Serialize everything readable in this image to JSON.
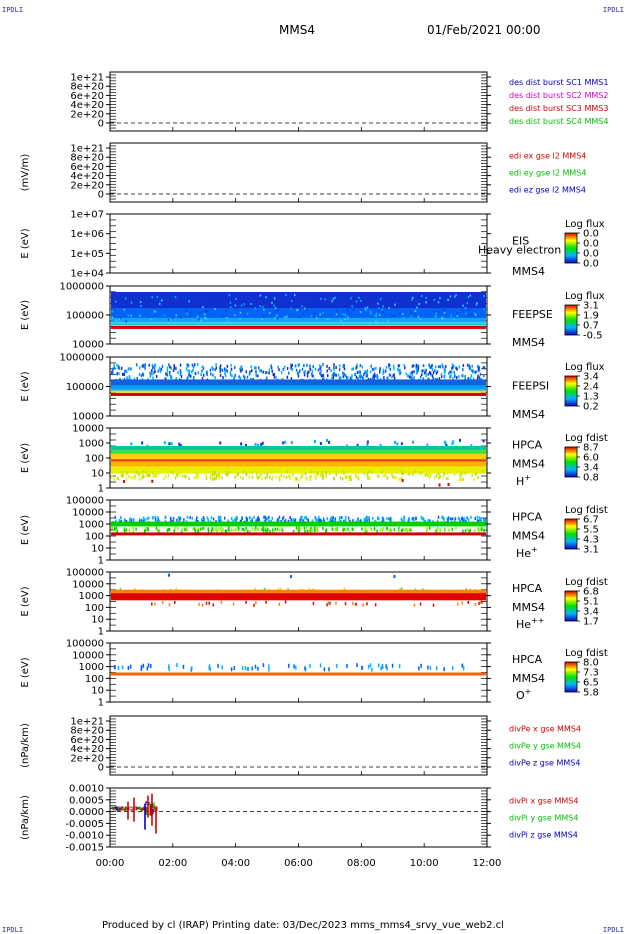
{
  "header": {
    "corner_left": "IPDLI",
    "corner_right": "IPDLI",
    "spacecraft": "MMS4",
    "date": "01/Feb/2021 00:00"
  },
  "footer": {
    "text": "Produced by cl (IRAP)   Printing date: 03/Dec/2023   mms_mms4_srvy_vue_web2.cl",
    "corner_left": "IPDLI",
    "corner_right": "IPDLI"
  },
  "x_axis": {
    "ticks": [
      "00:00",
      "02:00",
      "04:00",
      "06:00",
      "08:00",
      "10:00",
      "12:00"
    ]
  },
  "colors": {
    "red": "#d40000",
    "green": "#00c000",
    "blue": "#0000c8",
    "magenta": "#d000d0"
  },
  "chart_data": [
    {
      "type": "line",
      "id": "p1",
      "ylabel": "",
      "ytick_labels": [
        "1e+21",
        "8e+20",
        "6e+20",
        "4e+20",
        "2e+20",
        "0"
      ],
      "legend": [
        {
          "label": "des dist burst SC1 MMS1",
          "color": "#0000c8"
        },
        {
          "label": "des dist burst SC2 MMS2",
          "color": "#d000d0"
        },
        {
          "label": "des dist burst SC3 MMS3",
          "color": "#d40000"
        },
        {
          "label": "des dist burst SC4 MMS4",
          "color": "#00c000"
        }
      ]
    },
    {
      "type": "line",
      "id": "p2",
      "ylabel": "(mV/m)",
      "ytick_labels": [
        "1e+21",
        "8e+20",
        "6e+20",
        "4e+20",
        "2e+20",
        "0"
      ],
      "legend": [
        {
          "label": "edi ex gse l2 MMS4",
          "color": "#d40000"
        },
        {
          "label": "edi ey gse l2 MMS4",
          "color": "#00c000"
        },
        {
          "label": "edi ez gse l2 MMS4",
          "color": "#0000c8"
        }
      ]
    },
    {
      "type": "heatmap",
      "id": "p3",
      "ylabel": "E (eV)",
      "ytick_labels": [
        "1e+07",
        "1e+06",
        "1e+05",
        "1e+04"
      ],
      "instrument": "EIS",
      "instrument2": "MMS4",
      "note": "Heavy electron to",
      "colorbar": {
        "title": "Log flux",
        "ticks": [
          "0.0",
          "0.0",
          "0.0",
          "0.0"
        ]
      }
    },
    {
      "type": "heatmap",
      "id": "p4",
      "ylabel": "E (eV)",
      "ytick_labels": [
        "1000000",
        "100000",
        "10000"
      ],
      "instrument": "FEEPSE",
      "instrument2": "MMS4",
      "colorbar": {
        "title": "Log flux",
        "ticks": [
          "3.1",
          "1.9",
          "0.7",
          "-0.5"
        ]
      }
    },
    {
      "type": "heatmap",
      "id": "p5",
      "ylabel": "E (eV)",
      "ytick_labels": [
        "1000000",
        "100000",
        "10000"
      ],
      "instrument": "FEEPSI",
      "instrument2": "MMS4",
      "colorbar": {
        "title": "Log flux",
        "ticks": [
          "3.4",
          "2.4",
          "1.3",
          "0.2"
        ]
      }
    },
    {
      "type": "heatmap",
      "id": "p6",
      "ylabel": "E (eV)",
      "ytick_labels": [
        "10000",
        "1000",
        "100",
        "10",
        "1"
      ],
      "instrument": "HPCA",
      "instrument2": "MMS4",
      "species": "H",
      "charge": "+",
      "colorbar": {
        "title": "Log fdist",
        "ticks": [
          "8.7",
          "6.0",
          "3.4",
          "0.8"
        ]
      }
    },
    {
      "type": "heatmap",
      "id": "p7",
      "ylabel": "E (eV)",
      "ytick_labels": [
        "100000",
        "10000",
        "1000",
        "100",
        "10",
        "1"
      ],
      "instrument": "HPCA",
      "instrument2": "MMS4",
      "species": "He",
      "charge": "+",
      "colorbar": {
        "title": "Log fdist",
        "ticks": [
          "6.7",
          "5.5",
          "4.3",
          "3.1"
        ]
      }
    },
    {
      "type": "heatmap",
      "id": "p8",
      "ylabel": "E (eV)",
      "ytick_labels": [
        "100000",
        "10000",
        "1000",
        "100",
        "10",
        "1"
      ],
      "instrument": "HPCA",
      "instrument2": "MMS4",
      "species": "He",
      "charge": "++",
      "colorbar": {
        "title": "Log fdist",
        "ticks": [
          "6.8",
          "5.1",
          "3.4",
          "1.7"
        ]
      }
    },
    {
      "type": "heatmap",
      "id": "p9",
      "ylabel": "E (eV)",
      "ytick_labels": [
        "100000",
        "10000",
        "1000",
        "100",
        "10",
        "1"
      ],
      "instrument": "HPCA",
      "instrument2": "MMS4",
      "species": "O",
      "charge": "+",
      "colorbar": {
        "title": "Log fdist",
        "ticks": [
          "8.0",
          "7.3",
          "6.5",
          "5.8"
        ]
      }
    },
    {
      "type": "line",
      "id": "p10",
      "ylabel": "(nPa/km)",
      "ytick_labels": [
        "1e+21",
        "8e+20",
        "6e+20",
        "4e+20",
        "2e+20",
        "0"
      ],
      "legend": [
        {
          "label": "divPe x gse MMS4",
          "color": "#d40000"
        },
        {
          "label": "divPe y gse MMS4",
          "color": "#00c000"
        },
        {
          "label": "divPe z gse MMS4",
          "color": "#0000c8"
        }
      ]
    },
    {
      "type": "line",
      "id": "p11",
      "ylabel": "(nPa/km)",
      "ytick_labels": [
        "0.0010",
        "0.0005",
        "0.0000",
        "-0.0005",
        "-0.0010",
        "-0.0015"
      ],
      "legend": [
        {
          "label": "divPi x gse MMS4",
          "color": "#d40000"
        },
        {
          "label": "divPi y gse MMS4",
          "color": "#00c000"
        },
        {
          "label": "divPi z gse MMS4",
          "color": "#0000c8"
        }
      ]
    }
  ]
}
